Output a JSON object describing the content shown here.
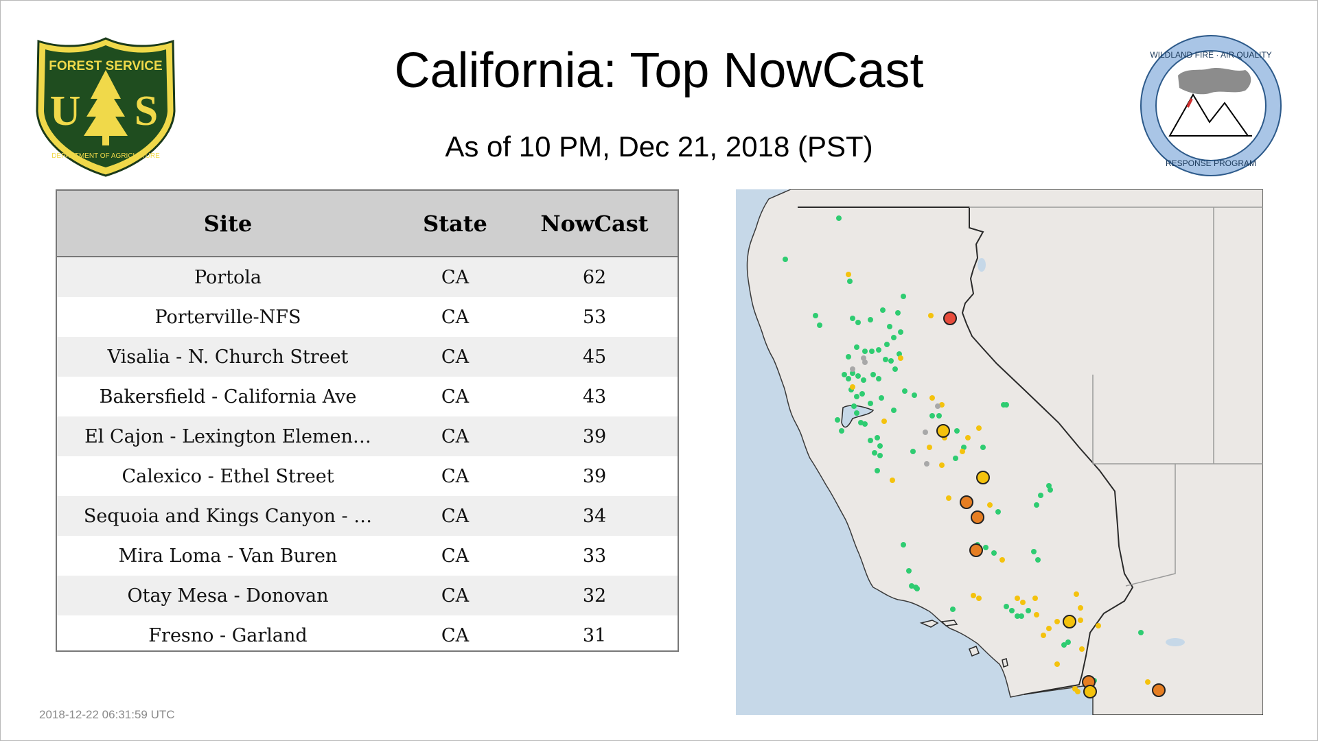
{
  "header": {
    "title": "California: Top NowCast",
    "subtitle": "As of 10 PM, Dec 21, 2018 (PST)"
  },
  "logos": {
    "usfs": {
      "icon": "usfs-shield-logo",
      "text_top": "FOREST SERVICE",
      "text_letters": "US",
      "text_bottom": "DEPARTMENT OF AGRICULTURE"
    },
    "wfaq": {
      "icon": "wfaqrp-seal-logo",
      "text_top": "WILDLAND FIRE · AIR QUALITY",
      "text_bottom": "RESPONSE PROGRAM"
    }
  },
  "table": {
    "headers": {
      "site": "Site",
      "state": "State",
      "nowcast": "NowCast"
    },
    "rows": [
      {
        "site": "Portola",
        "state": "CA",
        "nowcast": "62"
      },
      {
        "site": "Porterville-NFS",
        "state": "CA",
        "nowcast": "53"
      },
      {
        "site": "Visalia - N. Church Street",
        "state": "CA",
        "nowcast": "45"
      },
      {
        "site": "Bakersfield - California Ave",
        "state": "CA",
        "nowcast": "43"
      },
      {
        "site": "El Cajon - Lexington Elemen…",
        "state": "CA",
        "nowcast": "39"
      },
      {
        "site": "Calexico - Ethel Street",
        "state": "CA",
        "nowcast": "39"
      },
      {
        "site": "Sequoia and Kings Canyon - …",
        "state": "CA",
        "nowcast": "34"
      },
      {
        "site": "Mira Loma - Van Buren",
        "state": "CA",
        "nowcast": "33"
      },
      {
        "site": "Otay Mesa - Donovan",
        "state": "CA",
        "nowcast": "32"
      },
      {
        "site": "Fresno - Garland",
        "state": "CA",
        "nowcast": "31"
      }
    ]
  },
  "map": {
    "icon": "california-map",
    "colors": {
      "ocean": "#c6d8e8",
      "land": "#ebe8e5",
      "green": "#2ecc71",
      "yellow": "#f4c20d",
      "orange": "#e67e22",
      "red": "#e74c3c",
      "gray": "#a8a8a8"
    }
  },
  "footer": {
    "timestamp": "2018-12-22 06:31:59 UTC"
  }
}
